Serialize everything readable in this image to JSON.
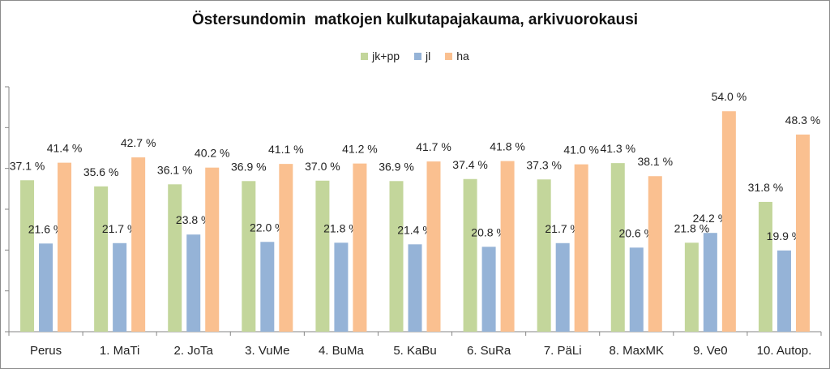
{
  "chart_data": {
    "type": "bar",
    "title": "Östersundomin  matkojen kulkutapajakauma, arkivuorokausi",
    "categories": [
      "Perus",
      "1. MaTi",
      "2. JoTa",
      "3. VuMe",
      "4. BuMa",
      "5. KaBu",
      "6. SuRa",
      "7. PäLi",
      "8. MaxMK",
      "9. Ve0",
      "10. Autop."
    ],
    "series": [
      {
        "name": "jk+pp",
        "color": "#c3d69b",
        "values": [
          37.1,
          35.6,
          36.1,
          36.9,
          37.0,
          36.9,
          37.4,
          37.3,
          41.3,
          21.8,
          31.8
        ],
        "labels": [
          "37.1 %",
          "35.6 %",
          "36.1 %",
          "36.9 %",
          "37.0 %",
          "36.9 %",
          "37.4 %",
          "37.3 %",
          "41.3 %",
          "21.8 %",
          "31.8 %"
        ]
      },
      {
        "name": "jl",
        "color": "#95b3d7",
        "values": [
          21.6,
          21.7,
          23.8,
          22.0,
          21.8,
          21.4,
          20.8,
          21.7,
          20.6,
          24.2,
          19.9
        ],
        "labels": [
          "21.6 %",
          "21.7 %",
          "23.8 %",
          "22.0 %",
          "21.8 %",
          "21.4 %",
          "20.8 %",
          "21.7 %",
          "20.6 %",
          "24.2 %",
          "19.9 %"
        ]
      },
      {
        "name": "ha",
        "color": "#fac090",
        "values": [
          41.4,
          42.7,
          40.2,
          41.1,
          41.2,
          41.7,
          41.8,
          41.0,
          38.1,
          54.0,
          48.3
        ],
        "labels": [
          "41.4 %",
          "42.7 %",
          "40.2 %",
          "41.1 %",
          "41.2 %",
          "41.7 %",
          "41.8 %",
          "41.0 %",
          "38.1 %",
          "54.0 %",
          "48.3 %"
        ]
      }
    ],
    "ylim": [
      0,
      60
    ],
    "y_tick_labels_visible": false,
    "grid": false,
    "legend_position": "top"
  }
}
